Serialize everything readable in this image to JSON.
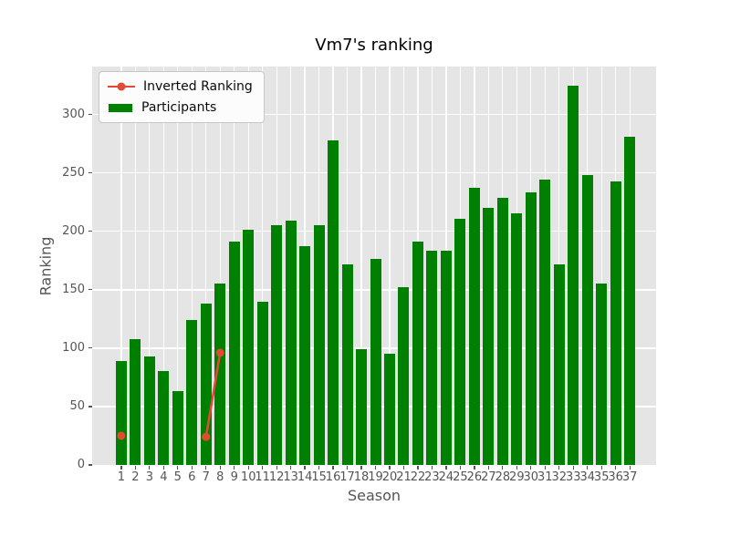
{
  "chart_data": {
    "type": "bar",
    "title": "Vm7's ranking",
    "xlabel": "Season",
    "ylabel": "Ranking",
    "ylim": [
      0,
      341
    ],
    "yticks": [
      0,
      50,
      100,
      150,
      200,
      250,
      300
    ],
    "categories": [
      1,
      2,
      3,
      4,
      5,
      6,
      7,
      8,
      9,
      10,
      11,
      12,
      13,
      14,
      15,
      16,
      17,
      18,
      19,
      20,
      21,
      22,
      23,
      24,
      25,
      26,
      27,
      28,
      29,
      30,
      31,
      32,
      33,
      34,
      35,
      36,
      37
    ],
    "series": [
      {
        "name": "Inverted Ranking",
        "type": "line",
        "color": "#E24A33",
        "marker": "circle",
        "values": [
          25,
          null,
          null,
          null,
          null,
          null,
          24,
          96,
          null,
          null,
          null,
          null,
          null,
          null,
          null,
          null,
          null,
          null,
          null,
          null,
          null,
          null,
          null,
          null,
          null,
          null,
          null,
          null,
          null,
          null,
          null,
          null,
          null,
          null,
          null,
          null,
          null
        ]
      },
      {
        "name": "Participants",
        "type": "bar",
        "color": "#008000",
        "values": [
          89,
          108,
          93,
          80,
          63,
          124,
          138,
          155,
          191,
          201,
          140,
          205,
          209,
          187,
          205,
          278,
          172,
          99,
          176,
          95,
          152,
          191,
          183,
          183,
          211,
          237,
          220,
          229,
          215,
          233,
          244,
          172,
          325,
          248,
          155,
          243,
          281
        ]
      }
    ],
    "legend_position": "upper-left",
    "grid": true,
    "plot_background": "#E5E5E5",
    "grid_color": "#ffffff",
    "tick_color": "#555555"
  }
}
